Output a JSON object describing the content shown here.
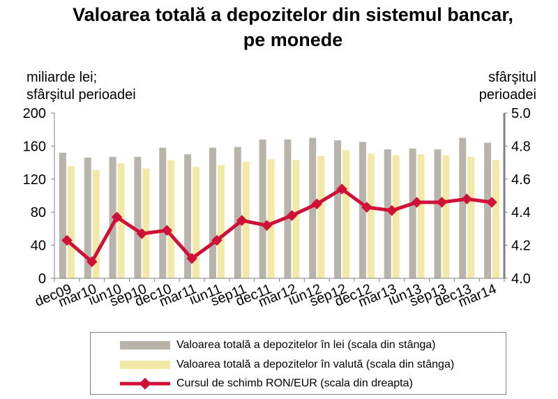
{
  "title_line1": "Valoarea totală a depozitelor din sistemul bancar,",
  "title_line2": "pe monede",
  "left_unit_line1": "miliarde lei;",
  "left_unit_line2": "sfârşitul perioadei",
  "right_unit_line1": "sfârşitul",
  "right_unit_line2": "perioadei",
  "colors": {
    "lei": "#b8b3ab",
    "valuta": "#f2e8a8",
    "rate": "#cf1037"
  },
  "chart_data": {
    "type": "bar",
    "categories": [
      "dec09",
      "mar10",
      "iun10",
      "sep10",
      "dec10",
      "mar11",
      "iun11",
      "sep11",
      "dec11",
      "mar12",
      "iun12",
      "sep12",
      "dec12",
      "mar13",
      "iun13",
      "sep13",
      "dec13",
      "mar14"
    ],
    "series": [
      {
        "name": "Valoarea totală a depozitelor în lei (scala din stânga)",
        "type": "bar",
        "axis": "left",
        "values": [
          152,
          146,
          147,
          147,
          158,
          150,
          158,
          159,
          168,
          168,
          170,
          167,
          165,
          156,
          157,
          156,
          170,
          164
        ]
      },
      {
        "name": "Valoarea totală a depozitelor în valută (scala din stânga)",
        "type": "bar",
        "axis": "left",
        "values": [
          136,
          131,
          139,
          133,
          143,
          135,
          137,
          141,
          144,
          143,
          148,
          155,
          151,
          149,
          150,
          149,
          147,
          143
        ]
      },
      {
        "name": "Cursul de schimb RON/EUR (scala din dreapta)",
        "type": "line",
        "axis": "right",
        "values": [
          4.23,
          4.1,
          4.37,
          4.27,
          4.29,
          4.12,
          4.23,
          4.35,
          4.32,
          4.38,
          4.45,
          4.54,
          4.43,
          4.41,
          4.46,
          4.46,
          4.48,
          4.46
        ]
      }
    ],
    "y_left": {
      "min": 0,
      "max": 200,
      "ticks": [
        "0",
        "40",
        "80",
        "120",
        "160",
        "200"
      ]
    },
    "y_right": {
      "min": 4.0,
      "max": 5.0,
      "ticks": [
        "4.0",
        "4.2",
        "4.4",
        "4.6",
        "4.8",
        "5.0"
      ]
    },
    "grid": false,
    "legend_position": "bottom"
  }
}
